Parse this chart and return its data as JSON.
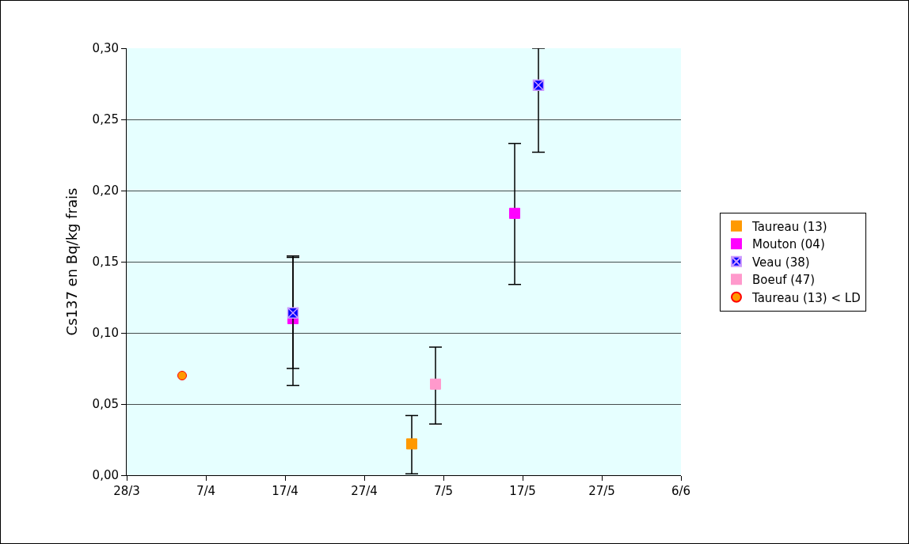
{
  "chart_data": {
    "type": "scatter",
    "ylabel": "Cs137 en Bq/kg frais",
    "xlim": [
      "--03-28",
      "--06-06"
    ],
    "xticks": [
      {
        "value": "--03-28",
        "label": "28/3"
      },
      {
        "value": "--04-07",
        "label": "7/4"
      },
      {
        "value": "--04-17",
        "label": "17/4"
      },
      {
        "value": "--04-27",
        "label": "27/4"
      },
      {
        "value": "--05-07",
        "label": "7/5"
      },
      {
        "value": "--05-17",
        "label": "17/5"
      },
      {
        "value": "--05-27",
        "label": "27/5"
      },
      {
        "value": "--06-06",
        "label": "6/6"
      }
    ],
    "ylim": [
      0,
      0.3
    ],
    "yticks": [
      {
        "value": 0,
        "label": "0,00"
      },
      {
        "value": 0.05,
        "label": "0,05"
      },
      {
        "value": 0.1,
        "label": "0,10"
      },
      {
        "value": 0.15,
        "label": "0,15"
      },
      {
        "value": 0.2,
        "label": "0,20"
      },
      {
        "value": 0.25,
        "label": "0,25"
      },
      {
        "value": 0.3,
        "label": "0,30"
      }
    ],
    "grid": "y",
    "legend": "right",
    "series": [
      {
        "name": "Taureau (13)",
        "color": "#ff9900",
        "marker": "square",
        "x": [
          "--05-03"
        ],
        "values": [
          0.022
        ],
        "errors": [
          [
            0.001,
            0.042
          ]
        ]
      },
      {
        "name": "Mouton (04)",
        "color": "#ff00ff",
        "marker": "square",
        "x": [
          "--04-18",
          "--05-16"
        ],
        "values": [
          0.11,
          0.184
        ],
        "errors": [
          [
            0.063,
            0.154
          ],
          [
            0.134,
            0.233
          ]
        ]
      },
      {
        "name": "Veau (38)",
        "color": "#0000ff",
        "marker": "cross",
        "x": [
          "--04-18",
          "--05-19"
        ],
        "values": [
          0.114,
          0.274
        ],
        "errors": [
          [
            0.075,
            0.153
          ],
          [
            0.227,
            0.3
          ]
        ]
      },
      {
        "name": "Boeuf (47)",
        "color": "#ff99cc",
        "marker": "square",
        "x": [
          "--05-06"
        ],
        "values": [
          0.064
        ],
        "errors": [
          [
            0.036,
            0.09
          ]
        ]
      },
      {
        "name": "Taureau (13) < LD",
        "color": "#ff9900",
        "marker": "circle",
        "x": [
          "--04-04"
        ],
        "values": [
          0.07
        ]
      }
    ]
  }
}
